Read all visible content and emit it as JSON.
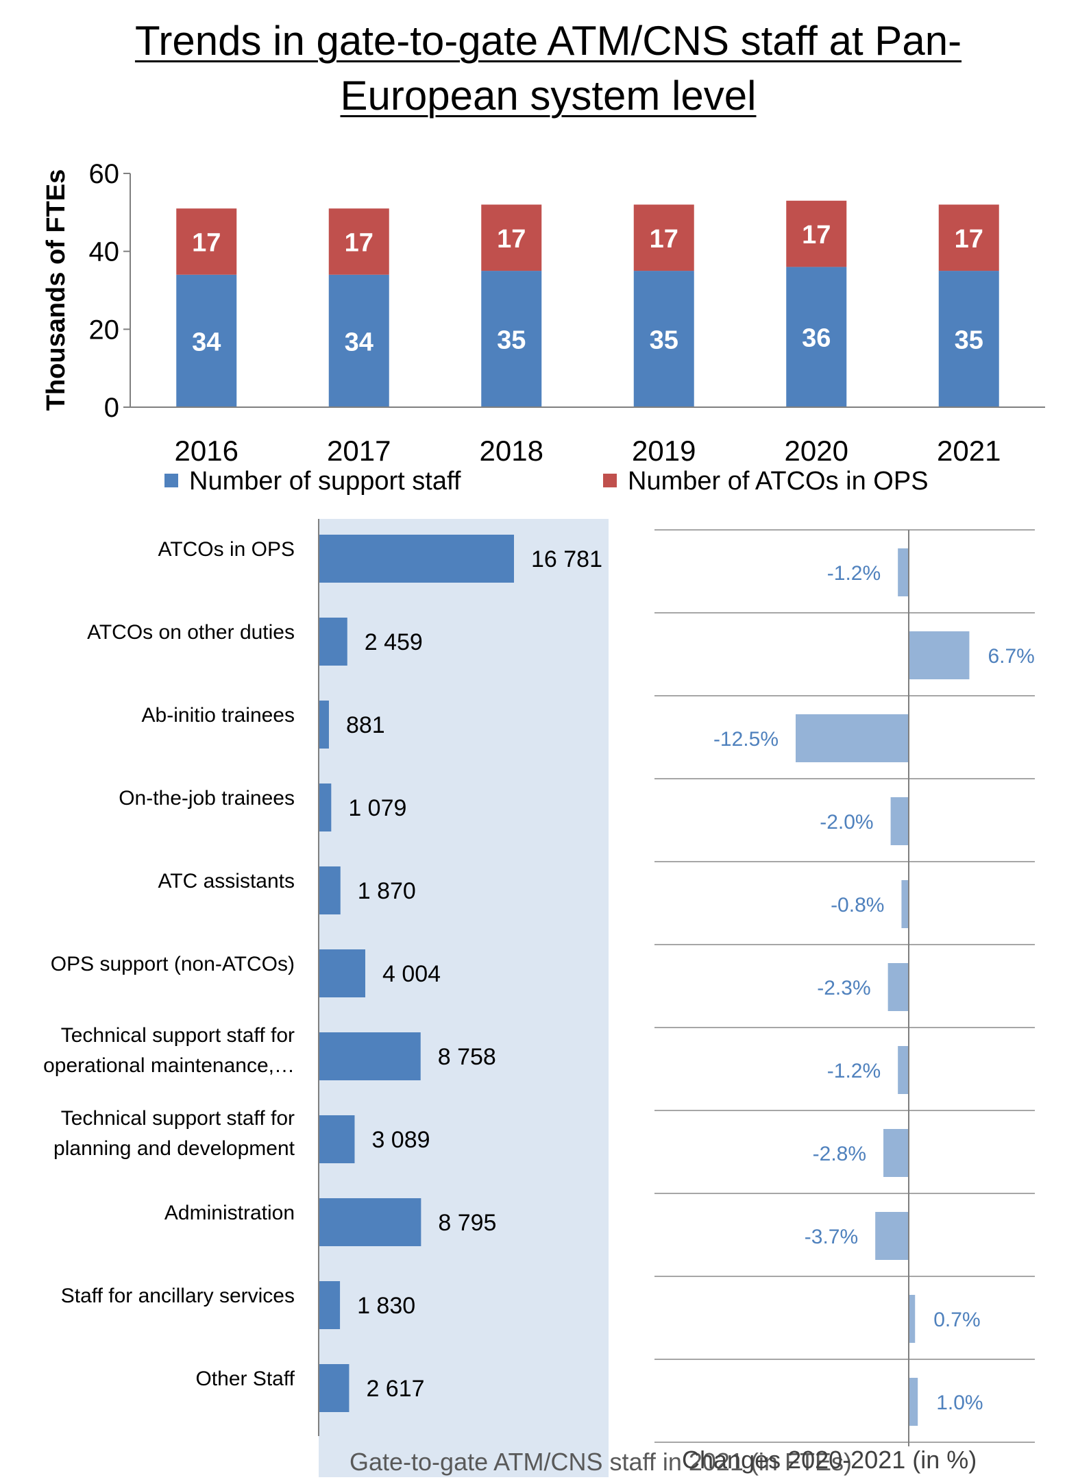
{
  "title_line1": "Trends in gate-to-gate ATM/CNS staff at Pan-",
  "title_line2": "European system level",
  "chart_data": [
    {
      "type": "bar",
      "stacked": true,
      "categories": [
        "2016",
        "2017",
        "2018",
        "2019",
        "2020",
        "2021"
      ],
      "series": [
        {
          "name": "Number of support staff",
          "color": "#4f81bd",
          "values": [
            34,
            34,
            35,
            35,
            36,
            35
          ]
        },
        {
          "name": "Number of ATCOs in OPS",
          "color": "#c0504d",
          "values": [
            17,
            17,
            17,
            17,
            17,
            17
          ]
        }
      ],
      "ylabel": "Thousands of FTEs",
      "ylim": [
        0,
        60
      ],
      "yticks": [
        0,
        20,
        40,
        60
      ],
      "legend": "bottom",
      "grid": false
    },
    {
      "type": "bar",
      "orientation": "horizontal",
      "categories": [
        [
          "ATCOs in OPS"
        ],
        [
          "ATCOs on other duties"
        ],
        [
          "Ab-initio trainees"
        ],
        [
          "On-the-job trainees"
        ],
        [
          "ATC assistants"
        ],
        [
          "OPS support (non-ATCOs)"
        ],
        [
          "Technical support staff for",
          "operational maintenance,…"
        ],
        [
          "Technical support staff for",
          "planning and development"
        ],
        [
          "Administration"
        ],
        [
          "Staff for ancillary services"
        ],
        [
          "Other Staff"
        ]
      ],
      "values": [
        16781,
        2459,
        881,
        1079,
        1870,
        4004,
        8758,
        3089,
        8795,
        1830,
        2617
      ],
      "value_labels": [
        "16 781",
        "2 459",
        "881",
        "1 079",
        "1 870",
        "4 004",
        "8 758",
        "3 089",
        "8 795",
        "1 830",
        "2 617"
      ],
      "color": "#4f81bd",
      "background": "#dce6f2",
      "xlabel": "Gate-to-gate ATM/CNS staff in 2021 (in FTEs)"
    },
    {
      "type": "bar",
      "orientation": "horizontal",
      "values": [
        -1.2,
        6.7,
        -12.5,
        -2.0,
        -0.8,
        -2.3,
        -1.2,
        -2.8,
        -3.7,
        0.7,
        1.0
      ],
      "value_labels": [
        "-1.2%",
        "6.7%",
        "-12.5%",
        "-2.0%",
        "-0.8%",
        "-2.3%",
        "-1.2%",
        "-2.8%",
        "-3.7%",
        "0.7%",
        "1.0%"
      ],
      "color": "#95b3d7",
      "label_color": "#4f81bd",
      "xlabel": "Changes 2020-2021 (in %)"
    }
  ]
}
